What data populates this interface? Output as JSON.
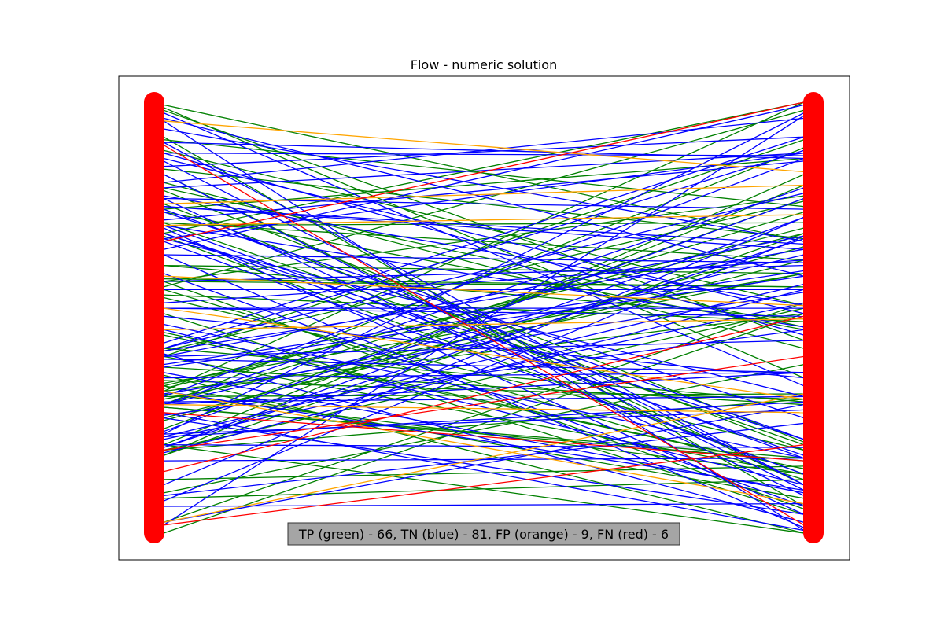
{
  "chart_data": {
    "type": "line",
    "title": "Flow - numeric solution",
    "xlabel": "",
    "ylabel": "",
    "grid": false,
    "legend_placement": "bottom-center",
    "summary_text": "TP (green) - 66, TN (blue) - 81, FP (orange) - 9, FN (red) - 6",
    "node_columns": {
      "left_x": 0,
      "right_x": 1,
      "node_color": "#ff0000"
    },
    "nodes_per_side": 162,
    "series": [
      {
        "label": "TP",
        "color": "#008000",
        "count": 66
      },
      {
        "label": "TN",
        "color": "#0000ff",
        "count": 81
      },
      {
        "label": "FP",
        "color": "#ffa500",
        "count": 9
      },
      {
        "label": "FN",
        "color": "#ff0000",
        "count": 6
      }
    ],
    "legend_box_color": "#a0a0a0"
  }
}
